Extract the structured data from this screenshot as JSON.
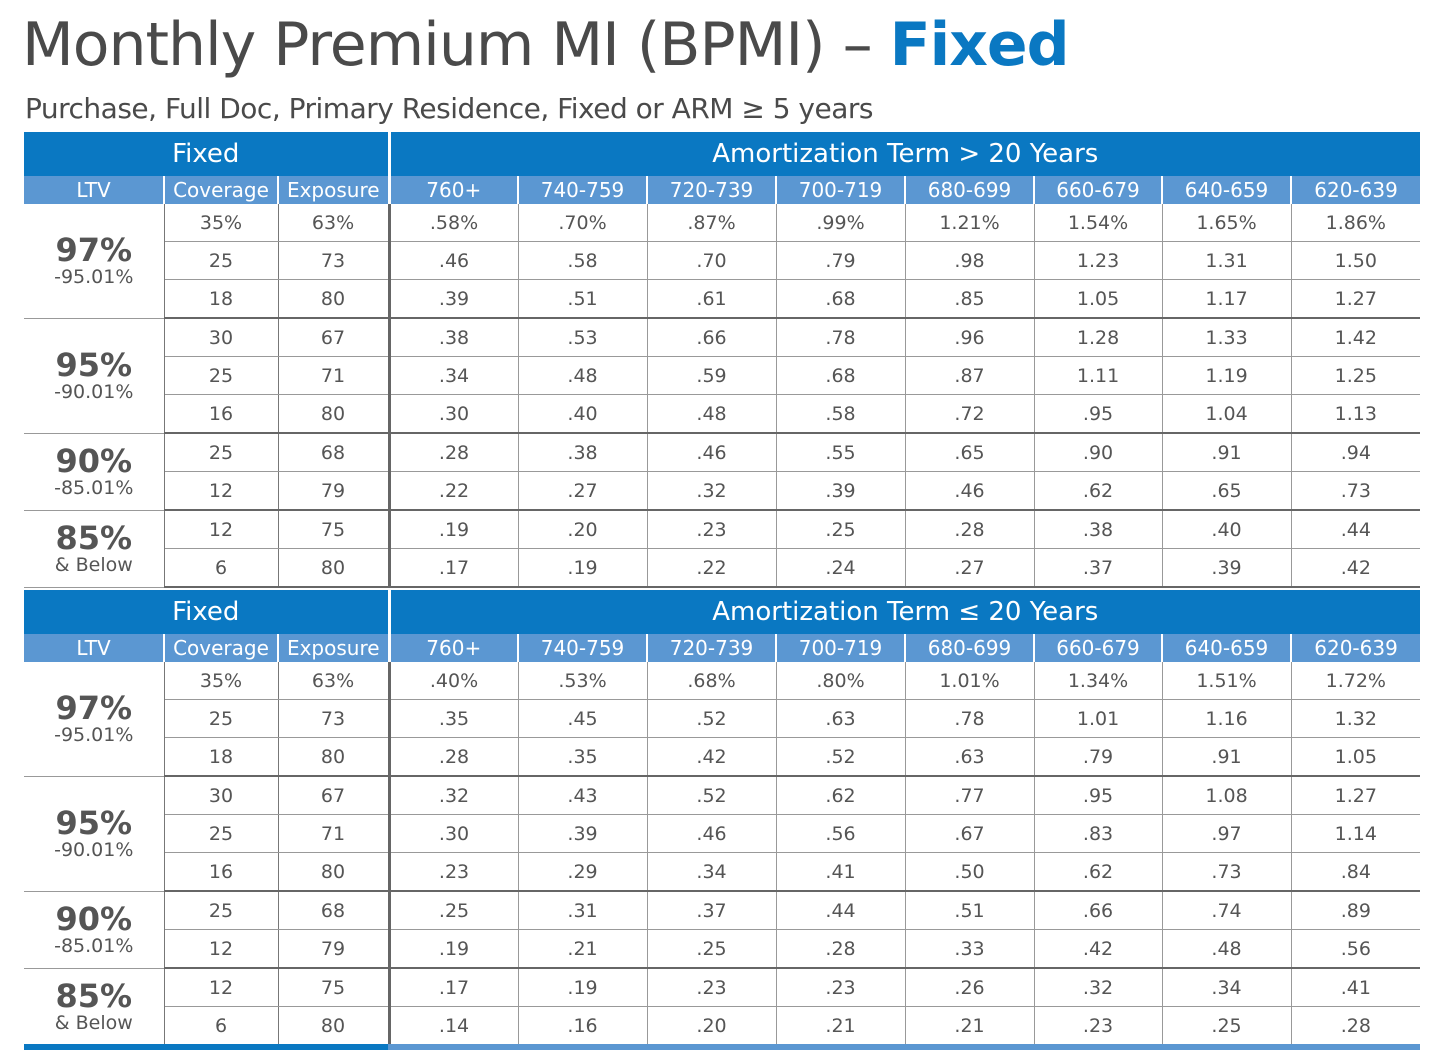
{
  "title": {
    "main": "Monthly Premium MI (BPMI) – ",
    "accent": "Fixed"
  },
  "subtitle": "Purchase, Full Doc, Primary Residence, Fixed or ARM ≥ 5 years",
  "colors": {
    "header_dark": "#0a78c2",
    "header_light": "#5b97d2"
  },
  "tables": [
    {
      "left_header": "Fixed",
      "right_header": "Amortization Term > 20 Years",
      "columns": [
        "LTV",
        "Coverage",
        "Exposure",
        "760+",
        "740-759",
        "720-739",
        "700-719",
        "680-699",
        "660-679",
        "640-659",
        "620-639"
      ],
      "groups": [
        {
          "ltv": "97%",
          "sub": "-95.01%",
          "rows": [
            {
              "coverage": "35%",
              "exposure": "63%",
              "values": [
                ".58%",
                ".70%",
                ".87%",
                ".99%",
                "1.21%",
                "1.54%",
                "1.65%",
                "1.86%"
              ]
            },
            {
              "coverage": "25",
              "exposure": "73",
              "values": [
                ".46",
                ".58",
                ".70",
                ".79",
                ".98",
                "1.23",
                "1.31",
                "1.50"
              ]
            },
            {
              "coverage": "18",
              "exposure": "80",
              "values": [
                ".39",
                ".51",
                ".61",
                ".68",
                ".85",
                "1.05",
                "1.17",
                "1.27"
              ]
            }
          ]
        },
        {
          "ltv": "95%",
          "sub": "-90.01%",
          "rows": [
            {
              "coverage": "30",
              "exposure": "67",
              "values": [
                ".38",
                ".53",
                ".66",
                ".78",
                ".96",
                "1.28",
                "1.33",
                "1.42"
              ]
            },
            {
              "coverage": "25",
              "exposure": "71",
              "values": [
                ".34",
                ".48",
                ".59",
                ".68",
                ".87",
                "1.11",
                "1.19",
                "1.25"
              ]
            },
            {
              "coverage": "16",
              "exposure": "80",
              "values": [
                ".30",
                ".40",
                ".48",
                ".58",
                ".72",
                ".95",
                "1.04",
                "1.13"
              ]
            }
          ]
        },
        {
          "ltv": "90%",
          "sub": "-85.01%",
          "rows": [
            {
              "coverage": "25",
              "exposure": "68",
              "values": [
                ".28",
                ".38",
                ".46",
                ".55",
                ".65",
                ".90",
                ".91",
                ".94"
              ]
            },
            {
              "coverage": "12",
              "exposure": "79",
              "values": [
                ".22",
                ".27",
                ".32",
                ".39",
                ".46",
                ".62",
                ".65",
                ".73"
              ]
            }
          ]
        },
        {
          "ltv": "85%",
          "sub": "& Below",
          "rows": [
            {
              "coverage": "12",
              "exposure": "75",
              "values": [
                ".19",
                ".20",
                ".23",
                ".25",
                ".28",
                ".38",
                ".40",
                ".44"
              ]
            },
            {
              "coverage": "6",
              "exposure": "80",
              "values": [
                ".17",
                ".19",
                ".22",
                ".24",
                ".27",
                ".37",
                ".39",
                ".42"
              ]
            }
          ]
        }
      ]
    },
    {
      "left_header": "Fixed",
      "right_header": "Amortization Term ≤ 20 Years",
      "columns": [
        "LTV",
        "Coverage",
        "Exposure",
        "760+",
        "740-759",
        "720-739",
        "700-719",
        "680-699",
        "660-679",
        "640-659",
        "620-639"
      ],
      "groups": [
        {
          "ltv": "97%",
          "sub": "-95.01%",
          "rows": [
            {
              "coverage": "35%",
              "exposure": "63%",
              "values": [
                ".40%",
                ".53%",
                ".68%",
                ".80%",
                "1.01%",
                "1.34%",
                "1.51%",
                "1.72%"
              ]
            },
            {
              "coverage": "25",
              "exposure": "73",
              "values": [
                ".35",
                ".45",
                ".52",
                ".63",
                ".78",
                "1.01",
                "1.16",
                "1.32"
              ]
            },
            {
              "coverage": "18",
              "exposure": "80",
              "values": [
                ".28",
                ".35",
                ".42",
                ".52",
                ".63",
                ".79",
                ".91",
                "1.05"
              ]
            }
          ]
        },
        {
          "ltv": "95%",
          "sub": "-90.01%",
          "rows": [
            {
              "coverage": "30",
              "exposure": "67",
              "values": [
                ".32",
                ".43",
                ".52",
                ".62",
                ".77",
                ".95",
                "1.08",
                "1.27"
              ]
            },
            {
              "coverage": "25",
              "exposure": "71",
              "values": [
                ".30",
                ".39",
                ".46",
                ".56",
                ".67",
                ".83",
                ".97",
                "1.14"
              ]
            },
            {
              "coverage": "16",
              "exposure": "80",
              "values": [
                ".23",
                ".29",
                ".34",
                ".41",
                ".50",
                ".62",
                ".73",
                ".84"
              ]
            }
          ]
        },
        {
          "ltv": "90%",
          "sub": "-85.01%",
          "rows": [
            {
              "coverage": "25",
              "exposure": "68",
              "values": [
                ".25",
                ".31",
                ".37",
                ".44",
                ".51",
                ".66",
                ".74",
                ".89"
              ]
            },
            {
              "coverage": "12",
              "exposure": "79",
              "values": [
                ".19",
                ".21",
                ".25",
                ".28",
                ".33",
                ".42",
                ".48",
                ".56"
              ]
            }
          ]
        },
        {
          "ltv": "85%",
          "sub": "& Below",
          "rows": [
            {
              "coverage": "12",
              "exposure": "75",
              "values": [
                ".17",
                ".19",
                ".23",
                ".23",
                ".26",
                ".32",
                ".34",
                ".41"
              ]
            },
            {
              "coverage": "6",
              "exposure": "80",
              "values": [
                ".14",
                ".16",
                ".20",
                ".21",
                ".21",
                ".23",
                ".25",
                ".28"
              ]
            }
          ]
        }
      ]
    }
  ]
}
